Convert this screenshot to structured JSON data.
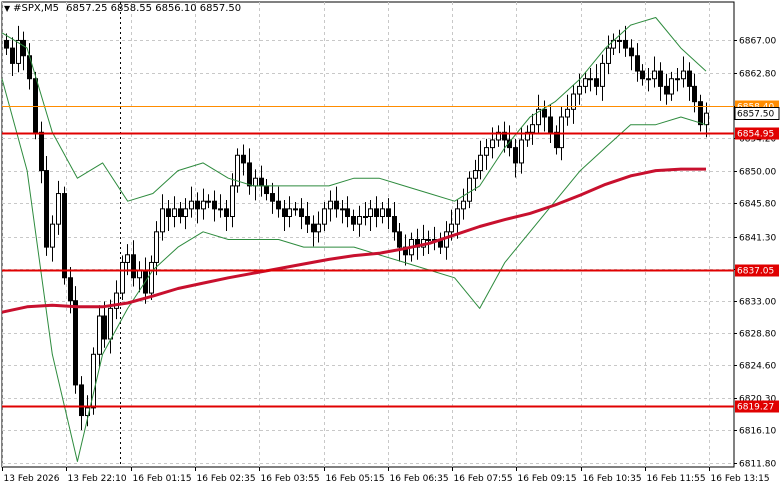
{
  "chart_data": {
    "type": "candlestick",
    "symbol": "#SPX,M5",
    "ohlc": {
      "open": "6857.25",
      "high": "6858.55",
      "low": "6856.10",
      "close": "6857.50"
    },
    "ylim": [
      6811.8,
      6871.5
    ],
    "y_ticks": [
      "6867.00",
      "6862.80",
      "6858.40",
      "6854.20",
      "6850.00",
      "6845.80",
      "6841.30",
      "6837.10",
      "6833.00",
      "6828.80",
      "6824.60",
      "6820.30",
      "6816.10",
      "6811.80"
    ],
    "x_ticks": [
      "13 Feb 2026",
      "13 Feb 22:10",
      "16 Feb 01:15",
      "16 Feb 02:35",
      "16 Feb 03:55",
      "16 Feb 05:15",
      "16 Feb 06:35",
      "16 Feb 07:55",
      "16 Feb 09:15",
      "16 Feb 10:35",
      "16 Feb 11:55",
      "16 Feb 13:15"
    ],
    "levels": [
      {
        "value": 6858.4,
        "label": "6858.40",
        "color": "#ff8c00",
        "type": "bid-line"
      },
      {
        "value": 6854.95,
        "label": "6854.95",
        "color": "#e00000",
        "type": "support-resistance"
      },
      {
        "value": 6837.05,
        "label": "6837.05",
        "color": "#e00000",
        "type": "support-resistance"
      },
      {
        "value": 6819.27,
        "label": "6819.27",
        "color": "#e00000",
        "type": "support-resistance"
      }
    ],
    "last_price": {
      "value": 6857.5,
      "label": "6857.50"
    },
    "close_path": [
      6866,
      6864,
      6867,
      6865,
      6862,
      6855,
      6850,
      6840,
      6843,
      6847,
      6836,
      6833,
      6822,
      6818,
      6819,
      6826,
      6831,
      6828,
      6832,
      6834,
      6838,
      6839,
      6836,
      6837,
      6834,
      6838,
      6842,
      6845,
      6844,
      6845,
      6844,
      6845,
      6846,
      6845,
      6846,
      6846,
      6845,
      6845,
      6844,
      6848,
      6852,
      6851,
      6848,
      6849,
      6848,
      6847,
      6846,
      6845,
      6844,
      6845,
      6845,
      6844,
      6843,
      6842,
      6843,
      6845,
      6846,
      6845,
      6845,
      6844,
      6843,
      6844,
      6844,
      6845,
      6844,
      6845,
      6844,
      6842,
      6840,
      6839,
      6841,
      6840,
      6841,
      6841,
      6841,
      6840,
      6842,
      6843,
      6845,
      6846,
      6849,
      6850,
      6852,
      6853,
      6854,
      6855,
      6854,
      6853,
      6851,
      6854,
      6855,
      6856,
      6858,
      6857,
      6855,
      6853,
      6857,
      6858,
      6860,
      6861,
      6862,
      6862,
      6861,
      6864,
      6866,
      6867,
      6867,
      6866,
      6865,
      6863,
      6862,
      6862,
      6863,
      6861,
      6860,
      6862,
      6862,
      6863,
      6861,
      6859,
      6856,
      6857.5
    ],
    "ma_path": [
      6831.5,
      6832.2,
      6832.4,
      6832.2,
      6832.2,
      6832.7,
      6833.6,
      6834.6,
      6835.3,
      6836.0,
      6836.6,
      6837.2,
      6837.8,
      6838.4,
      6838.9,
      6839.2,
      6839.8,
      6840.5,
      6841.6,
      6842.7,
      6843.6,
      6844.4,
      6845.5,
      6846.8,
      6848.2,
      6849.3,
      6850.0,
      6850.2,
      6850.2
    ],
    "upper_band": [
      6868,
      6866,
      6855,
      6849,
      6851,
      6846,
      6847,
      6850,
      6851,
      6849,
      6848,
      6848,
      6848,
      6848,
      6849,
      6849,
      6848,
      6847,
      6846,
      6848,
      6853,
      6857,
      6859,
      6862,
      6866,
      6869,
      6870,
      6866,
      6863
    ],
    "lower_band": [
      6862,
      6850,
      6826,
      6812,
      6826,
      6832,
      6837,
      6840,
      6842,
      6841,
      6841,
      6841,
      6840,
      6840,
      6840,
      6839,
      6838,
      6837,
      6836,
      6832,
      6838,
      6842,
      6846,
      6850,
      6853,
      6856,
      6856,
      6857,
      6856
    ]
  }
}
